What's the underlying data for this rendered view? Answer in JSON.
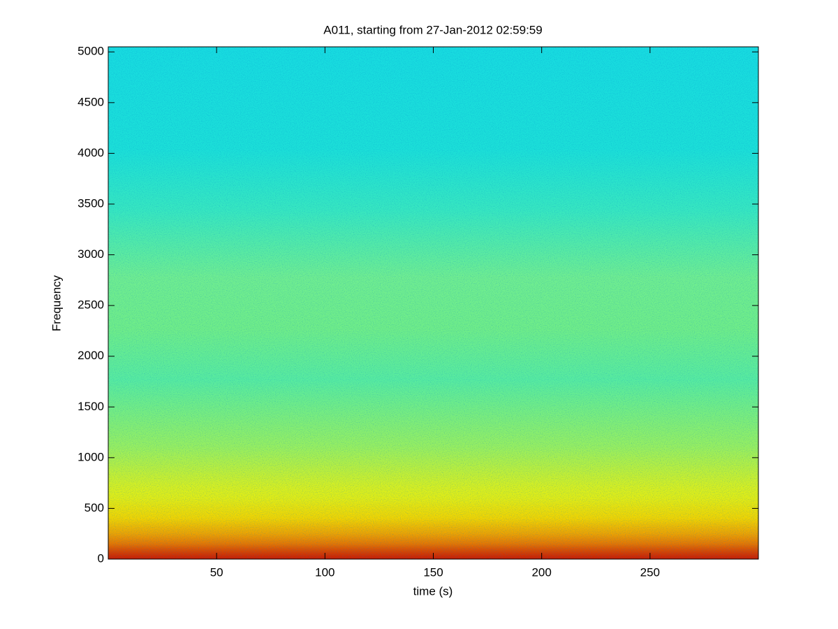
{
  "chart_data": {
    "type": "spectrogram",
    "title": "A011, starting from 27-Jan-2012 02:59:59",
    "x_label": "time (s)",
    "y_label": "Frequency",
    "xlim": [
      0,
      300
    ],
    "xticks": [
      50,
      100,
      150,
      200,
      250
    ],
    "ylim": [
      0,
      5050
    ],
    "yticks": [
      0,
      500,
      1000,
      1500,
      2000,
      2500,
      3000,
      3500,
      4000,
      4500,
      5000
    ]
  }
}
